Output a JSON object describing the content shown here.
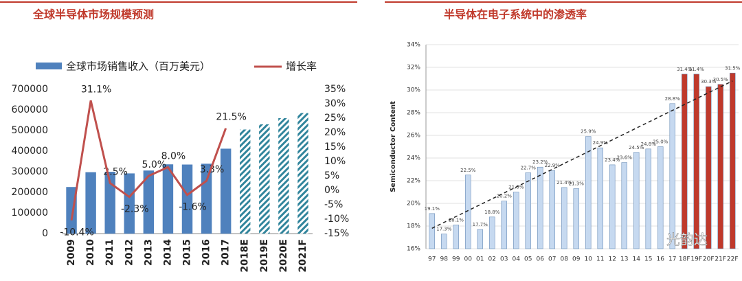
{
  "chart_data": [
    {
      "type": "combo",
      "title": "全球半导体市场规模预测",
      "categories": [
        "2009",
        "2010",
        "2011",
        "2012",
        "2013",
        "2014",
        "2015",
        "2016",
        "2017",
        "2018E",
        "2019E",
        "2020E",
        "2021F"
      ],
      "series": [
        {
          "name": "全球市场销售收入（百万美元）",
          "color": "#4f81bd",
          "values": [
            226000,
            298000,
            300000,
            292000,
            306000,
            336000,
            335000,
            339000,
            412000,
            505000,
            530000,
            560000,
            585000
          ],
          "hatched": [
            false,
            false,
            false,
            false,
            false,
            false,
            false,
            false,
            false,
            true,
            true,
            true,
            true
          ]
        },
        {
          "name": "增长率",
          "color": "#c0504d",
          "axis": "y2",
          "values": [
            -10.4,
            31.1,
            2.5,
            -2.3,
            5.0,
            8.0,
            -1.6,
            3.3,
            21.5,
            null,
            null,
            null,
            null
          ],
          "value_labels": [
            "-10.4%",
            "31.1%",
            "2.5%",
            "-2.3%",
            "5.0%",
            "8.0%",
            "-1.6%",
            "3.3%",
            "21.5%",
            null,
            null,
            null,
            null
          ]
        }
      ],
      "ylim": [
        0,
        700000
      ],
      "yticks": [
        0,
        100000,
        200000,
        300000,
        400000,
        500000,
        600000,
        700000
      ],
      "y2lim": [
        -15,
        35
      ],
      "y2ticks": [
        {
          "value": -15,
          "label": "-15%"
        },
        {
          "value": -10,
          "label": "-10%"
        },
        {
          "value": -5,
          "label": "-5%"
        },
        {
          "value": 0,
          "label": "0%"
        },
        {
          "value": 5,
          "label": "5%"
        },
        {
          "value": 10,
          "label": "10%"
        },
        {
          "value": 15,
          "label": "15%"
        },
        {
          "value": 20,
          "label": "20%"
        },
        {
          "value": 25,
          "label": "25%"
        },
        {
          "value": 30,
          "label": "30%"
        },
        {
          "value": 35,
          "label": "35%"
        }
      ],
      "grid": false
    },
    {
      "type": "bar",
      "title": "半导体在电子系统中的渗透率",
      "ylabel": "Semiconductor Content",
      "categories": [
        "97",
        "98",
        "99",
        "00",
        "01",
        "02",
        "03",
        "04",
        "05",
        "06",
        "07",
        "08",
        "09",
        "10",
        "11",
        "12",
        "13",
        "14",
        "15",
        "16",
        "17",
        "18F",
        "19F",
        "20F",
        "21F",
        "22F"
      ],
      "values": [
        19.1,
        17.3,
        18.1,
        22.5,
        17.7,
        18.8,
        20.2,
        21.0,
        22.7,
        23.2,
        22.9,
        21.4,
        21.3,
        25.9,
        24.9,
        23.4,
        23.6,
        24.5,
        24.8,
        25.0,
        28.8,
        31.4,
        31.4,
        30.3,
        30.5,
        31.5
      ],
      "value_labels": [
        "19.1%",
        "17.3%",
        "18.1%",
        "22.5%",
        "17.7%",
        "18.8%",
        "20.2%",
        "21.0%",
        "22.7%",
        "23.2%",
        "22.9%",
        "21.4%",
        "21.3%",
        "25.9%",
        "24.9%",
        "23.4%",
        "23.6%",
        "24.5%",
        "24.8%",
        "25.0%",
        "28.8%",
        "31.4%",
        "31.4%",
        "30.3%",
        "30.5%",
        "31.5%"
      ],
      "colors": [
        "#c6d9f0",
        "#c6d9f0",
        "#c6d9f0",
        "#c6d9f0",
        "#c6d9f0",
        "#c6d9f0",
        "#c6d9f0",
        "#c6d9f0",
        "#c6d9f0",
        "#c6d9f0",
        "#c6d9f0",
        "#c6d9f0",
        "#c6d9f0",
        "#c6d9f0",
        "#c6d9f0",
        "#c6d9f0",
        "#c6d9f0",
        "#c6d9f0",
        "#c6d9f0",
        "#c6d9f0",
        "#c6d9f0",
        "#c0392b",
        "#c0392b",
        "#c0392b",
        "#c0392b",
        "#c0392b"
      ],
      "trendline": [
        17.8,
        30.8
      ],
      "ylim": [
        16,
        34
      ],
      "yticks": [
        {
          "value": 16,
          "label": "16%"
        },
        {
          "value": 18,
          "label": "18%"
        },
        {
          "value": 20,
          "label": "20%"
        },
        {
          "value": 22,
          "label": "22%"
        },
        {
          "value": 24,
          "label": "24%"
        },
        {
          "value": 26,
          "label": "26%"
        },
        {
          "value": 28,
          "label": "28%"
        },
        {
          "value": 30,
          "label": "30%"
        },
        {
          "value": 32,
          "label": "32%"
        },
        {
          "value": 34,
          "label": "34%"
        }
      ],
      "grid": true,
      "watermark": "光韵达"
    }
  ]
}
